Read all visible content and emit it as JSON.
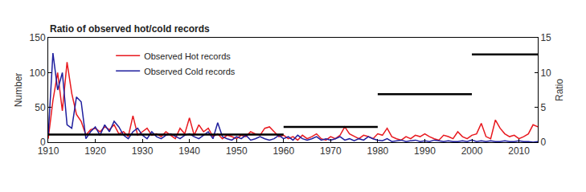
{
  "chart_data": {
    "type": "line",
    "title": "Ratio of observed hot/cold records",
    "y_label": "Number",
    "y2_label": "Ratio",
    "x": [
      1910,
      1911,
      1912,
      1913,
      1914,
      1915,
      1916,
      1917,
      1918,
      1919,
      1920,
      1921,
      1922,
      1923,
      1924,
      1925,
      1926,
      1927,
      1928,
      1929,
      1930,
      1931,
      1932,
      1933,
      1934,
      1935,
      1936,
      1937,
      1938,
      1939,
      1940,
      1941,
      1942,
      1943,
      1944,
      1945,
      1946,
      1947,
      1948,
      1949,
      1950,
      1951,
      1952,
      1953,
      1954,
      1955,
      1956,
      1957,
      1958,
      1959,
      1960,
      1961,
      1962,
      1963,
      1964,
      1965,
      1966,
      1967,
      1968,
      1969,
      1970,
      1971,
      1972,
      1973,
      1974,
      1975,
      1976,
      1977,
      1978,
      1979,
      1980,
      1981,
      1982,
      1983,
      1984,
      1985,
      1986,
      1987,
      1988,
      1989,
      1990,
      1991,
      1992,
      1993,
      1994,
      1995,
      1996,
      1997,
      1998,
      1999,
      2000,
      2001,
      2002,
      2003,
      2004,
      2005,
      2006,
      2007,
      2008,
      2009,
      2010,
      2011,
      2012,
      2013,
      2014
    ],
    "series": [
      {
        "name": "Observed Hot records",
        "color": "#e8191f",
        "values": [
          5,
          60,
          100,
          45,
          115,
          70,
          40,
          30,
          10,
          18,
          20,
          15,
          22,
          18,
          25,
          12,
          15,
          8,
          38,
          10,
          15,
          20,
          10,
          12,
          8,
          15,
          10,
          5,
          20,
          12,
          35,
          10,
          25,
          15,
          20,
          8,
          12,
          5,
          10,
          8,
          5,
          10,
          8,
          15,
          12,
          10,
          20,
          22,
          15,
          8,
          10,
          5,
          8,
          3,
          10,
          5,
          8,
          12,
          5,
          3,
          8,
          5,
          10,
          22,
          12,
          8,
          5,
          10,
          8,
          5,
          12,
          10,
          20,
          8,
          5,
          3,
          8,
          5,
          10,
          8,
          12,
          8,
          5,
          3,
          10,
          8,
          5,
          15,
          8,
          5,
          10,
          12,
          27,
          8,
          5,
          32,
          20,
          12,
          8,
          10,
          5,
          8,
          12,
          25,
          22
        ]
      },
      {
        "name": "Observed Cold records",
        "color": "#1f1f9e",
        "values": [
          10,
          128,
          75,
          100,
          25,
          20,
          65,
          58,
          5,
          15,
          22,
          10,
          25,
          15,
          30,
          22,
          10,
          5,
          15,
          20,
          10,
          5,
          15,
          8,
          5,
          10,
          12,
          8,
          5,
          10,
          12,
          8,
          5,
          10,
          15,
          5,
          28,
          8,
          5,
          3,
          8,
          5,
          10,
          3,
          5,
          8,
          5,
          3,
          5,
          10,
          5,
          8,
          3,
          10,
          5,
          3,
          5,
          8,
          3,
          5,
          3,
          5,
          8,
          3,
          5,
          2,
          5,
          3,
          8,
          5,
          3,
          2,
          5,
          1,
          2,
          3,
          1,
          2,
          3,
          1,
          2,
          1,
          3,
          2,
          1,
          2,
          1,
          1,
          2,
          1,
          3,
          1,
          2,
          1,
          2,
          1,
          1,
          2,
          1,
          1,
          2,
          1,
          1,
          0,
          1
        ]
      },
      {
        "axis": "y2",
        "color": "#000000",
        "x": [
          1910,
          1960
        ],
        "values": [
          1.1,
          1.1
        ]
      },
      {
        "axis": "y2",
        "color": "#000000",
        "x": [
          1960,
          1980
        ],
        "values": [
          2.2,
          2.2
        ]
      },
      {
        "axis": "y2",
        "color": "#000000",
        "x": [
          1980,
          2000
        ],
        "values": [
          6.9,
          6.9
        ]
      },
      {
        "axis": "y2",
        "color": "#000000",
        "x": [
          2000,
          2014
        ],
        "values": [
          12.6,
          12.6
        ]
      }
    ],
    "xlim": [
      1910,
      2014
    ],
    "xticks": [
      1910,
      1920,
      1930,
      1940,
      1950,
      1960,
      1970,
      1980,
      1990,
      2000,
      2010
    ],
    "ylim": [
      0,
      150
    ],
    "yticks": [
      0,
      50,
      100,
      150
    ],
    "y2lim": [
      0,
      15
    ],
    "y2ticks": [
      0,
      5,
      10,
      15
    ],
    "grid": false,
    "legend": "upper left"
  }
}
